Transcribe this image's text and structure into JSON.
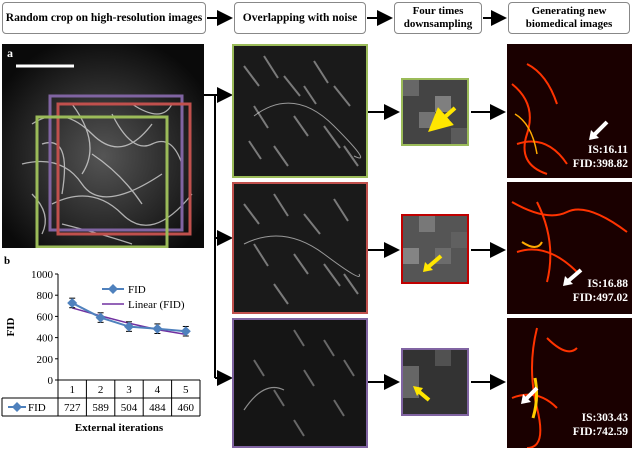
{
  "headers": [
    "Random crop on high-resolution images",
    "Overlapping with noise",
    "Four times downsampling",
    "Generating new biomedical images"
  ],
  "panel_a_label": "a",
  "panel_b_label": "b",
  "rows": [
    {
      "frame_color": "#9bbb59",
      "is": "IS:16.11",
      "fid": "FID:398.82"
    },
    {
      "frame_color": "#c0504d",
      "is": "IS:16.88",
      "fid": "FID:497.02"
    },
    {
      "frame_color": "#8064a2",
      "is": "IS:303.43",
      "fid": "FID:742.59"
    }
  ],
  "chart_data": {
    "type": "line",
    "categories": [
      "1",
      "2",
      "3",
      "4",
      "5"
    ],
    "series": [
      {
        "name": "FID",
        "values": [
          727,
          589,
          504,
          484,
          460
        ],
        "color": "#4f81bd",
        "error": [
          45,
          45,
          45,
          45,
          45
        ]
      },
      {
        "name": "Linear (FID)",
        "values": [
          680,
          605,
          535,
          475,
          430
        ],
        "color": "#7030a0"
      }
    ],
    "ylabel": "FID",
    "xlabel": "External iterations",
    "ylim": [
      0,
      1000
    ],
    "yticks": [
      0,
      200,
      400,
      600,
      800,
      1000
    ],
    "table_row_label": "FID",
    "grid": false,
    "legend": "top-right"
  }
}
